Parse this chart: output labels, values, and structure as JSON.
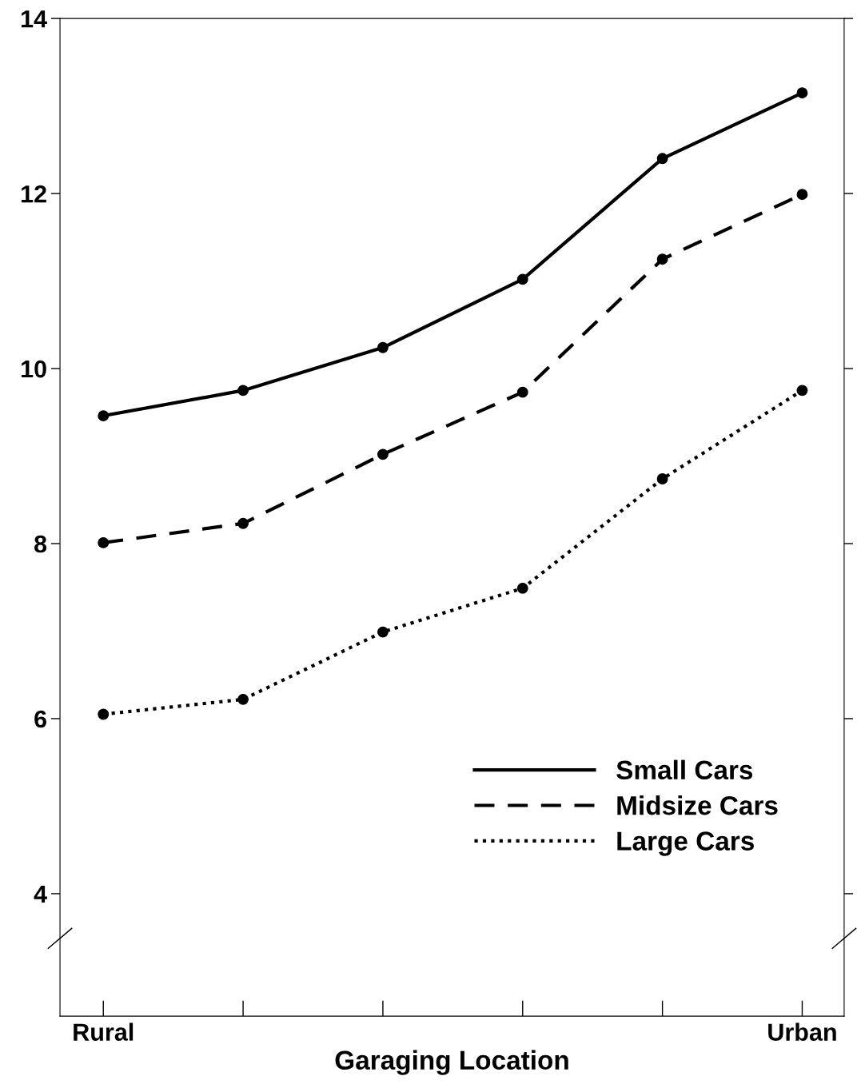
{
  "chart_data": {
    "type": "line",
    "xlabel": "Garaging Location",
    "categories": [
      "Rural",
      null,
      null,
      null,
      null,
      "Urban"
    ],
    "series": [
      {
        "name": "Small Cars",
        "color": "#000000",
        "line_style": "solid",
        "values": [
          9.46,
          9.75,
          10.24,
          11.02,
          12.4,
          13.15
        ]
      },
      {
        "name": "Midsize Cars",
        "color": "#000000",
        "line_style": "dashed",
        "values": [
          8.01,
          8.23,
          9.02,
          9.73,
          11.25,
          11.99
        ]
      },
      {
        "name": "Large Cars",
        "color": "#000000",
        "line_style": "dotted",
        "values": [
          6.05,
          6.22,
          6.99,
          7.49,
          8.74,
          9.75
        ]
      }
    ],
    "ylim": [
      2.6,
      14
    ],
    "yticks": [
      4,
      6,
      8,
      10,
      12,
      14
    ],
    "marker": "circle",
    "legend": "lower right",
    "grid": false
  }
}
